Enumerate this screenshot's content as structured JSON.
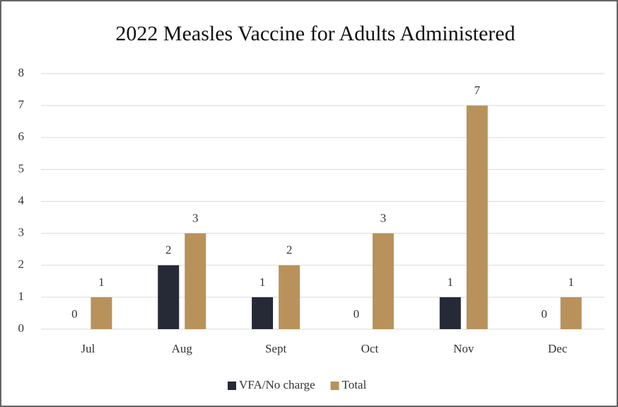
{
  "chart_data": {
    "type": "bar",
    "title": "2022 Measles Vaccine for Adults Administered",
    "categories": [
      "Jul",
      "Aug",
      "Sept",
      "Oct",
      "Nov",
      "Dec"
    ],
    "series": [
      {
        "name": "VFA/No charge",
        "color": "#262a36",
        "values": [
          0,
          2,
          1,
          0,
          1,
          0
        ]
      },
      {
        "name": "Total",
        "color": "#b8925a",
        "values": [
          1,
          3,
          2,
          3,
          7,
          1
        ]
      }
    ],
    "ylim": [
      0,
      8
    ],
    "yticks": [
      0,
      1,
      2,
      3,
      4,
      5,
      6,
      7,
      8
    ],
    "grid": true,
    "legend": "bottom"
  }
}
